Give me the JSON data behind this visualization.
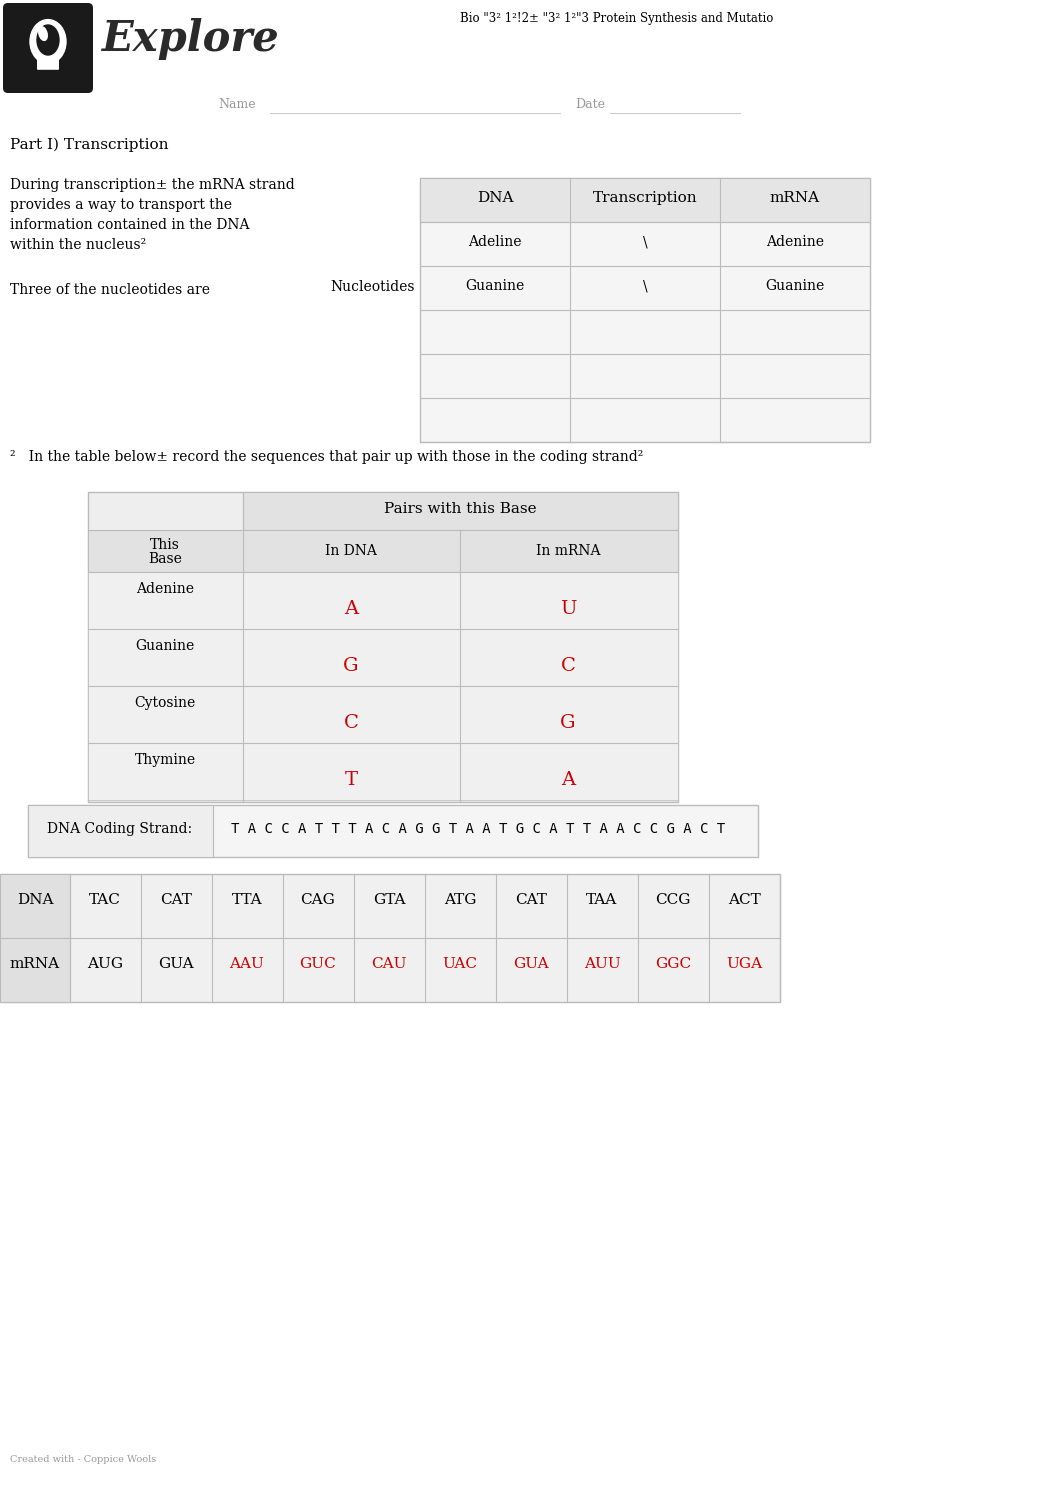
{
  "title_text": "Bio \"3² 1²!2± \"3² 1²\"3 Protein Synthesis and Mutatio",
  "header_logo_text": "Explore",
  "name_label": "Name",
  "date_label": "Date",
  "part1_title": "Part I) Transcription",
  "part1_body_lines": [
    "During transcription± the mRNA strand",
    "provides a way to transport the",
    "information contained in the DNA",
    "within the nucleus²"
  ],
  "nucleotides_label": "Three of the nucleotides are",
  "nucleotides_word": "Nucleotides",
  "table1_headers": [
    "DNA",
    "Transcription",
    "mRNA"
  ],
  "table1_rows": [
    [
      "Adeline",
      "\\",
      "Adenine"
    ],
    [
      "Guanine",
      "\\",
      "Guanine"
    ],
    [
      "",
      "",
      ""
    ],
    [
      "",
      "",
      ""
    ],
    [
      "",
      "",
      ""
    ]
  ],
  "footnote2_text": "²   In the table below± record the sequences that pair up with those in the coding strand²",
  "table2_col_header_line1": "This",
  "table2_col_header_line2": "Base",
  "table2_subheaders": [
    "In DNA",
    "In mRNA"
  ],
  "table2_main_header": "Pairs with this Base",
  "table2_rows": [
    [
      "Adenine",
      "A",
      "U"
    ],
    [
      "Guanine",
      "G",
      "C"
    ],
    [
      "Cytosine",
      "C",
      "G"
    ],
    [
      "Thymine",
      "T",
      "A"
    ]
  ],
  "coding_strand_label": "DNA Coding Strand:",
  "coding_strand_value": "T A C C A T T T A C A G G T A A T G C A T T A A C C G A C T",
  "dna_row_label": "DNA",
  "mrna_row_label": "mRNA",
  "dna_codons": [
    "TAC",
    "CAT",
    "TTA",
    "CAG",
    "GTA",
    "ATG",
    "CAT",
    "TAA",
    "CCG",
    "ACT"
  ],
  "mrna_codons_black": [
    "AUG",
    "GUA"
  ],
  "mrna_codons_red": [
    "AAU",
    "GUC",
    "CAU",
    "UAC",
    "GUA",
    "AUU",
    "GGC",
    "UGA"
  ],
  "footer_text": "Created with - Coppice Wools",
  "bg_color": "#ffffff",
  "red_color": "#cc0000"
}
